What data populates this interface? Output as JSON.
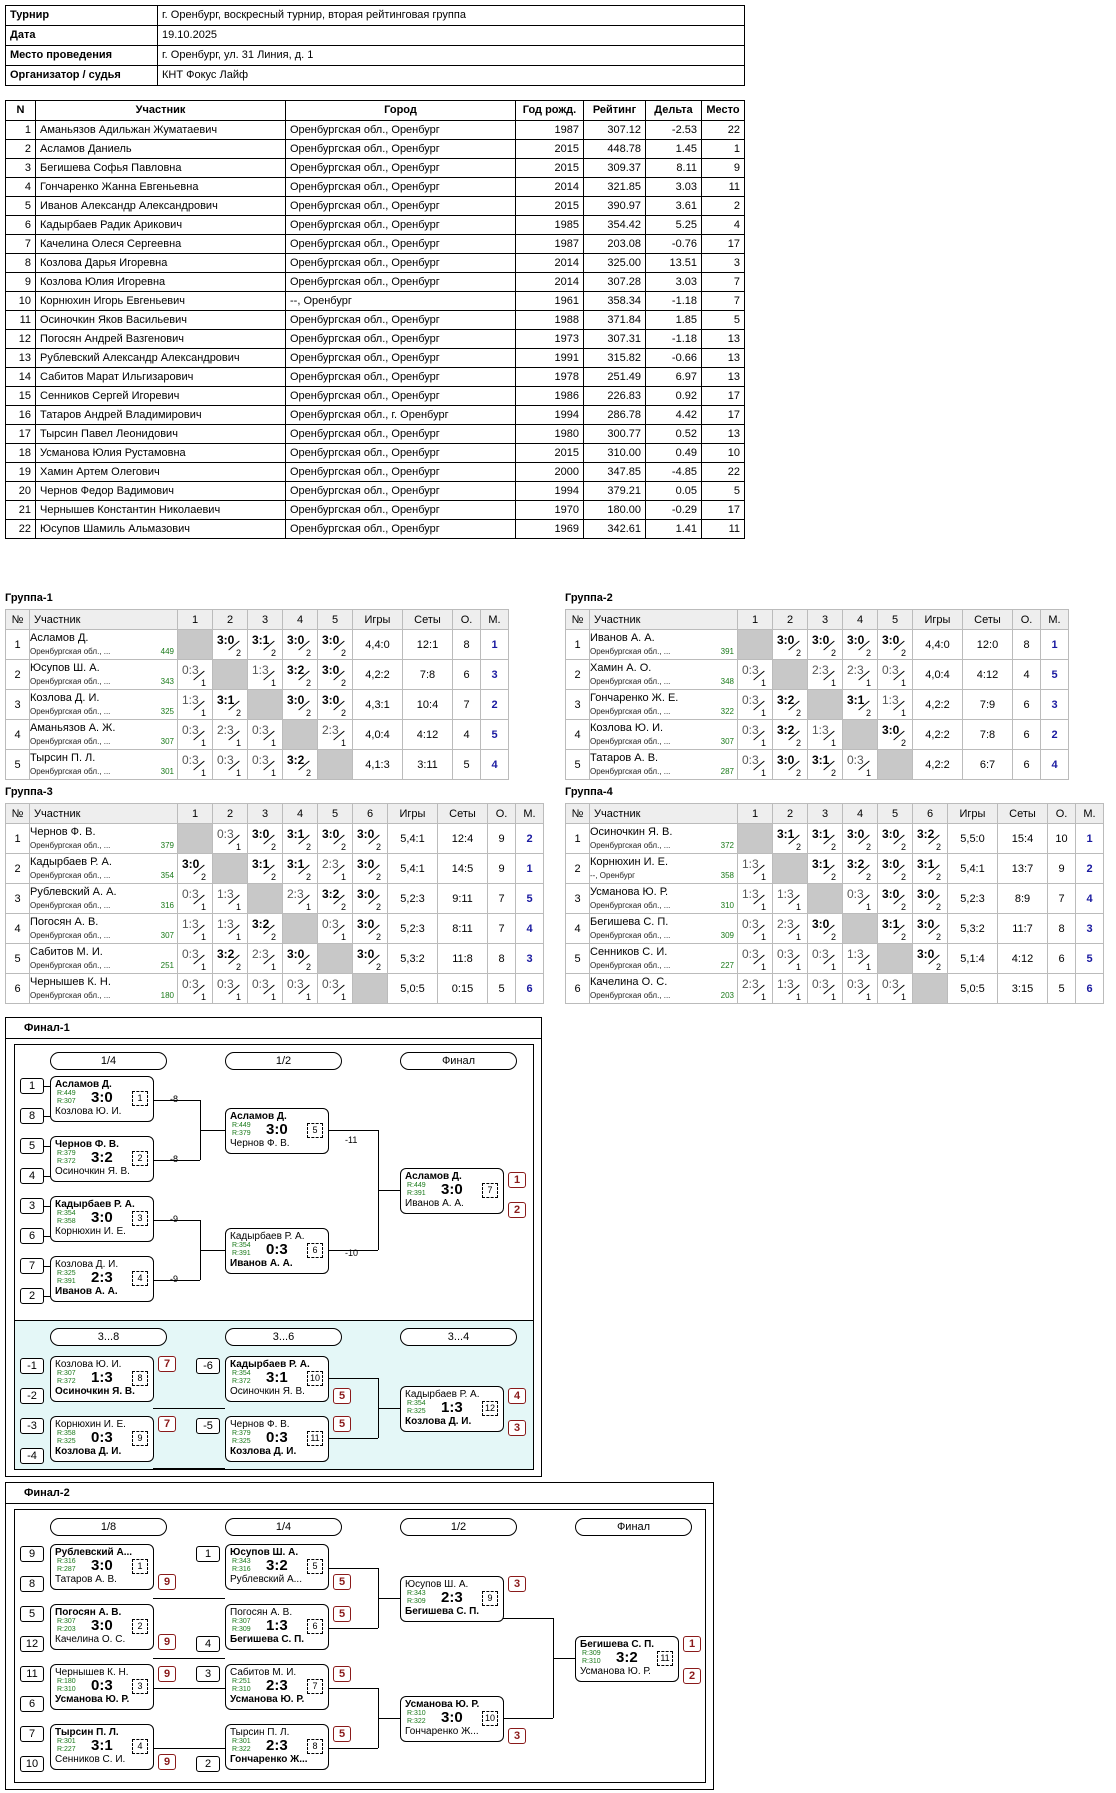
{
  "info": [
    {
      "label": "Турнир",
      "value": "г. Оренбург, воскресный турнир, вторая рейтинговая группа"
    },
    {
      "label": "Дата",
      "value": "19.10.2025"
    },
    {
      "label": "Место проведения",
      "value": "г. Оренбург, ул. 31 Линия, д. 1"
    },
    {
      "label": "Организатор / судья",
      "value": "КНТ Фокус Лайф"
    }
  ],
  "players_header": {
    "n": "N",
    "name": "Участник",
    "city": "Город",
    "year": "Год рожд.",
    "rating": "Рейтинг",
    "delta": "Дельта",
    "place": "Место"
  },
  "players": [
    [
      "1",
      "Аманьязов Адильжан Жуматаевич",
      "Оренбургская обл., Оренбург",
      "1987",
      "307.12",
      "-2.53",
      "22"
    ],
    [
      "2",
      "Асламов Даниель",
      "Оренбургская обл., Оренбург",
      "2015",
      "448.78",
      "1.45",
      "1"
    ],
    [
      "3",
      "Бегишева Софья Павловна",
      "Оренбургская обл., Оренбург",
      "2015",
      "309.37",
      "8.11",
      "9"
    ],
    [
      "4",
      "Гончаренко Жанна Евгеньевна",
      "Оренбургская обл., Оренбург",
      "2014",
      "321.85",
      "3.03",
      "11"
    ],
    [
      "5",
      "Иванов Александр Александрович",
      "Оренбургская обл., Оренбург",
      "2015",
      "390.97",
      "3.61",
      "2"
    ],
    [
      "6",
      "Кадырбаев Радик Арикович",
      "Оренбургская обл., Оренбург",
      "1985",
      "354.42",
      "5.25",
      "4"
    ],
    [
      "7",
      "Качелина Олеся Сергеевна",
      "Оренбургская обл., Оренбург",
      "1987",
      "203.08",
      "-0.76",
      "17"
    ],
    [
      "8",
      "Козлова Дарья Игоревна",
      "Оренбургская обл., Оренбург",
      "2014",
      "325.00",
      "13.51",
      "3"
    ],
    [
      "9",
      "Козлова Юлия Игоревна",
      "Оренбургская обл., Оренбург",
      "2014",
      "307.28",
      "3.03",
      "7"
    ],
    [
      "10",
      "Корнюхин Игорь Евгеньевич",
      "--, Оренбург",
      "1961",
      "358.34",
      "-1.18",
      "7"
    ],
    [
      "11",
      "Осиночкин Яков Васильевич",
      "Оренбургская обл., Оренбург",
      "1988",
      "371.84",
      "1.85",
      "5"
    ],
    [
      "12",
      "Погосян Андрей Вазгенович",
      "Оренбургская обл., Оренбург",
      "1973",
      "307.31",
      "-1.18",
      "13"
    ],
    [
      "13",
      "Рублевский Александр Александрович",
      "Оренбургская обл., Оренбург",
      "1991",
      "315.82",
      "-0.66",
      "13"
    ],
    [
      "14",
      "Сабитов Марат Ильгизарович",
      "Оренбургская обл., Оренбург",
      "1978",
      "251.49",
      "6.97",
      "13"
    ],
    [
      "15",
      "Сенников Сергей Игоревич",
      "Оренбургская обл., Оренбург",
      "1986",
      "226.83",
      "0.92",
      "17"
    ],
    [
      "16",
      "Татаров Андрей Владимирович",
      "Оренбургская обл., г. Оренбург",
      "1994",
      "286.78",
      "4.42",
      "17"
    ],
    [
      "17",
      "Тырсин Павел Леонидович",
      "Оренбургская обл., Оренбург",
      "1980",
      "300.77",
      "0.52",
      "13"
    ],
    [
      "18",
      "Усманова Юлия Рустамовна",
      "Оренбургская обл., Оренбург",
      "2015",
      "310.00",
      "0.49",
      "10"
    ],
    [
      "19",
      "Хамин Артем Олегович",
      "Оренбургская обл., Оренбург",
      "2000",
      "347.85",
      "-4.85",
      "22"
    ],
    [
      "20",
      "Чернов Федор Вадимович",
      "Оренбургская обл., Оренбург",
      "1994",
      "379.21",
      "0.05",
      "5"
    ],
    [
      "21",
      "Чернышев Константин Николаевич",
      "Оренбургская обл., Оренбург",
      "1970",
      "180.00",
      "-0.29",
      "17"
    ],
    [
      "22",
      "Юсупов Шамиль Альмазович",
      "Оренбургская обл., Оренбург",
      "1969",
      "342.61",
      "1.41",
      "11"
    ]
  ],
  "group_header": {
    "n": "№",
    "name": "Участник",
    "games": "Игры",
    "sets": "Сеты",
    "points": "О.",
    "place": "М."
  },
  "groups": [
    {
      "title": "Группа-1",
      "rows": [
        {
          "n": "1",
          "name": "Асламов Д.",
          "sub": "Оренбургская обл., ...",
          "r": "449",
          "cells": [
            "",
            "3:0|w|2",
            "3:1|w|2",
            "3:0|w|2",
            "3:0|w|2"
          ],
          "games": "4,4:0",
          "sets": "12:1",
          "pts": "8",
          "pl": "1"
        },
        {
          "n": "2",
          "name": "Юсупов Ш. А.",
          "sub": "Оренбургская обл., ...",
          "r": "343",
          "cells": [
            "0:3|l|1",
            "",
            "1:3|l|1",
            "3:2|w|2",
            "3:0|w|2"
          ],
          "games": "4,2:2",
          "sets": "7:8",
          "pts": "6",
          "pl": "3"
        },
        {
          "n": "3",
          "name": "Козлова Д. И.",
          "sub": "Оренбургская обл., ...",
          "r": "325",
          "cells": [
            "1:3|l|1",
            "3:1|w|2",
            "",
            "3:0|w|2",
            "3:0|w|2"
          ],
          "games": "4,3:1",
          "sets": "10:4",
          "pts": "7",
          "pl": "2"
        },
        {
          "n": "4",
          "name": "Аманьязов А. Ж.",
          "sub": "Оренбургская обл., ...",
          "r": "307",
          "cells": [
            "0:3|l|1",
            "2:3|l|1",
            "0:3|l|1",
            "",
            "2:3|l|1"
          ],
          "games": "4,0:4",
          "sets": "4:12",
          "pts": "4",
          "pl": "5"
        },
        {
          "n": "5",
          "name": "Тырсин П. Л.",
          "sub": "Оренбургская обл., ...",
          "r": "301",
          "cells": [
            "0:3|l|1",
            "0:3|l|1",
            "0:3|l|1",
            "3:2|w|2",
            ""
          ],
          "games": "4,1:3",
          "sets": "3:11",
          "pts": "5",
          "pl": "4"
        }
      ]
    },
    {
      "title": "Группа-2",
      "rows": [
        {
          "n": "1",
          "name": "Иванов А. А.",
          "sub": "Оренбургская обл., ...",
          "r": "391",
          "cells": [
            "",
            "3:0|w|2",
            "3:0|w|2",
            "3:0|w|2",
            "3:0|w|2"
          ],
          "games": "4,4:0",
          "sets": "12:0",
          "pts": "8",
          "pl": "1"
        },
        {
          "n": "2",
          "name": "Хамин А. О.",
          "sub": "Оренбургская обл., ...",
          "r": "348",
          "cells": [
            "0:3|l|1",
            "",
            "2:3|l|1",
            "2:3|l|1",
            "0:3|l|1"
          ],
          "games": "4,0:4",
          "sets": "4:12",
          "pts": "4",
          "pl": "5"
        },
        {
          "n": "3",
          "name": "Гончаренко Ж. Е.",
          "sub": "Оренбургская обл., ...",
          "r": "322",
          "cells": [
            "0:3|l|1",
            "3:2|w|2",
            "",
            "3:1|w|2",
            "1:3|l|1"
          ],
          "games": "4,2:2",
          "sets": "7:9",
          "pts": "6",
          "pl": "3"
        },
        {
          "n": "4",
          "name": "Козлова Ю. И.",
          "sub": "Оренбургская обл., ...",
          "r": "307",
          "cells": [
            "0:3|l|1",
            "3:2|w|2",
            "1:3|l|1",
            "",
            "3:0|w|2"
          ],
          "games": "4,2:2",
          "sets": "7:8",
          "pts": "6",
          "pl": "2"
        },
        {
          "n": "5",
          "name": "Татаров А. В.",
          "sub": "Оренбургская обл., ...",
          "r": "287",
          "cells": [
            "0:3|l|1",
            "3:0|w|2",
            "3:1|w|2",
            "0:3|l|1",
            ""
          ],
          "games": "4,2:2",
          "sets": "6:7",
          "pts": "6",
          "pl": "4"
        }
      ]
    },
    {
      "title": "Группа-3",
      "rows": [
        {
          "n": "1",
          "name": "Чернов Ф. В.",
          "sub": "Оренбургская обл., ...",
          "r": "379",
          "cells": [
            "",
            "0:3|l|1",
            "3:0|w|2",
            "3:1|w|2",
            "3:0|w|2",
            "3:0|w|2"
          ],
          "games": "5,4:1",
          "sets": "12:4",
          "pts": "9",
          "pl": "2"
        },
        {
          "n": "2",
          "name": "Кадырбаев Р. А.",
          "sub": "Оренбургская обл., ...",
          "r": "354",
          "cells": [
            "3:0|w|2",
            "",
            "3:1|w|2",
            "3:1|w|2",
            "2:3|l|1",
            "3:0|w|2"
          ],
          "games": "5,4:1",
          "sets": "14:5",
          "pts": "9",
          "pl": "1"
        },
        {
          "n": "3",
          "name": "Рублевский А. А.",
          "sub": "Оренбургская обл., ...",
          "r": "316",
          "cells": [
            "0:3|l|1",
            "1:3|l|1",
            "",
            "2:3|l|1",
            "3:2|w|2",
            "3:0|w|2"
          ],
          "games": "5,2:3",
          "sets": "9:11",
          "pts": "7",
          "pl": "5"
        },
        {
          "n": "4",
          "name": "Погосян А. В.",
          "sub": "Оренбургская обл., ...",
          "r": "307",
          "cells": [
            "1:3|l|1",
            "1:3|l|1",
            "3:2|w|2",
            "",
            "0:3|l|1",
            "3:0|w|2"
          ],
          "games": "5,2:3",
          "sets": "8:11",
          "pts": "7",
          "pl": "4"
        },
        {
          "n": "5",
          "name": "Сабитов М. И.",
          "sub": "Оренбургская обл., ...",
          "r": "251",
          "cells": [
            "0:3|l|1",
            "3:2|w|2",
            "2:3|l|1",
            "3:0|w|2",
            "",
            "3:0|w|2"
          ],
          "games": "5,3:2",
          "sets": "11:8",
          "pts": "8",
          "pl": "3"
        },
        {
          "n": "6",
          "name": "Чернышев К. Н.",
          "sub": "Оренбургская обл., ...",
          "r": "180",
          "cells": [
            "0:3|l|1",
            "0:3|l|1",
            "0:3|l|1",
            "0:3|l|1",
            "0:3|l|1",
            ""
          ],
          "games": "5,0:5",
          "sets": "0:15",
          "pts": "5",
          "pl": "6"
        }
      ]
    },
    {
      "title": "Группа-4",
      "rows": [
        {
          "n": "1",
          "name": "Осиночкин Я. В.",
          "sub": "Оренбургская обл., ...",
          "r": "372",
          "cells": [
            "",
            "3:1|w|2",
            "3:1|w|2",
            "3:0|w|2",
            "3:0|w|2",
            "3:2|w|2"
          ],
          "games": "5,5:0",
          "sets": "15:4",
          "pts": "10",
          "pl": "1"
        },
        {
          "n": "2",
          "name": "Корнюхин И. Е.",
          "sub": "--, Оренбург",
          "r": "358",
          "cells": [
            "1:3|l|1",
            "",
            "3:1|w|2",
            "3:2|w|2",
            "3:0|w|2",
            "3:1|w|2"
          ],
          "games": "5,4:1",
          "sets": "13:7",
          "pts": "9",
          "pl": "2"
        },
        {
          "n": "3",
          "name": "Усманова Ю. Р.",
          "sub": "Оренбургская обл., ...",
          "r": "310",
          "cells": [
            "1:3|l|1",
            "1:3|l|1",
            "",
            "0:3|l|1",
            "3:0|w|2",
            "3:0|w|2"
          ],
          "games": "5,2:3",
          "sets": "8:9",
          "pts": "7",
          "pl": "4"
        },
        {
          "n": "4",
          "name": "Бегишева С. П.",
          "sub": "Оренбургская обл., ...",
          "r": "309",
          "cells": [
            "0:3|l|1",
            "2:3|l|1",
            "3:0|w|2",
            "",
            "3:1|w|2",
            "3:0|w|2"
          ],
          "games": "5,3:2",
          "sets": "11:7",
          "pts": "8",
          "pl": "3"
        },
        {
          "n": "5",
          "name": "Сенников С. И.",
          "sub": "Оренбургская обл., ...",
          "r": "227",
          "cells": [
            "0:3|l|1",
            "0:3|l|1",
            "0:3|l|1",
            "1:3|l|1",
            "",
            "3:0|w|2"
          ],
          "games": "5,1:4",
          "sets": "4:12",
          "pts": "6",
          "pl": "5"
        },
        {
          "n": "6",
          "name": "Качелина О. С.",
          "sub": "Оренбургская обл., ...",
          "r": "203",
          "cells": [
            "2:3|l|1",
            "1:3|l|1",
            "0:3|l|1",
            "0:3|l|1",
            "0:3|l|1",
            ""
          ],
          "games": "5,0:5",
          "sets": "3:15",
          "pts": "5",
          "pl": "6"
        }
      ]
    }
  ],
  "final1": {
    "title": "Финал-1",
    "rounds": [
      "1/4",
      "1/2",
      "Финал"
    ],
    "rounds_b": [
      "3...8",
      "3...6",
      "3...4"
    ]
  },
  "final2": {
    "title": "Финал-2",
    "rounds": [
      "1/8",
      "1/4",
      "1/2",
      "Финал"
    ]
  },
  "colors": {
    "bracket_bg": "#e4f7f7",
    "winner": "#1a1aa0",
    "place": "#8a1a1a",
    "rating": "#1a7a1a"
  }
}
